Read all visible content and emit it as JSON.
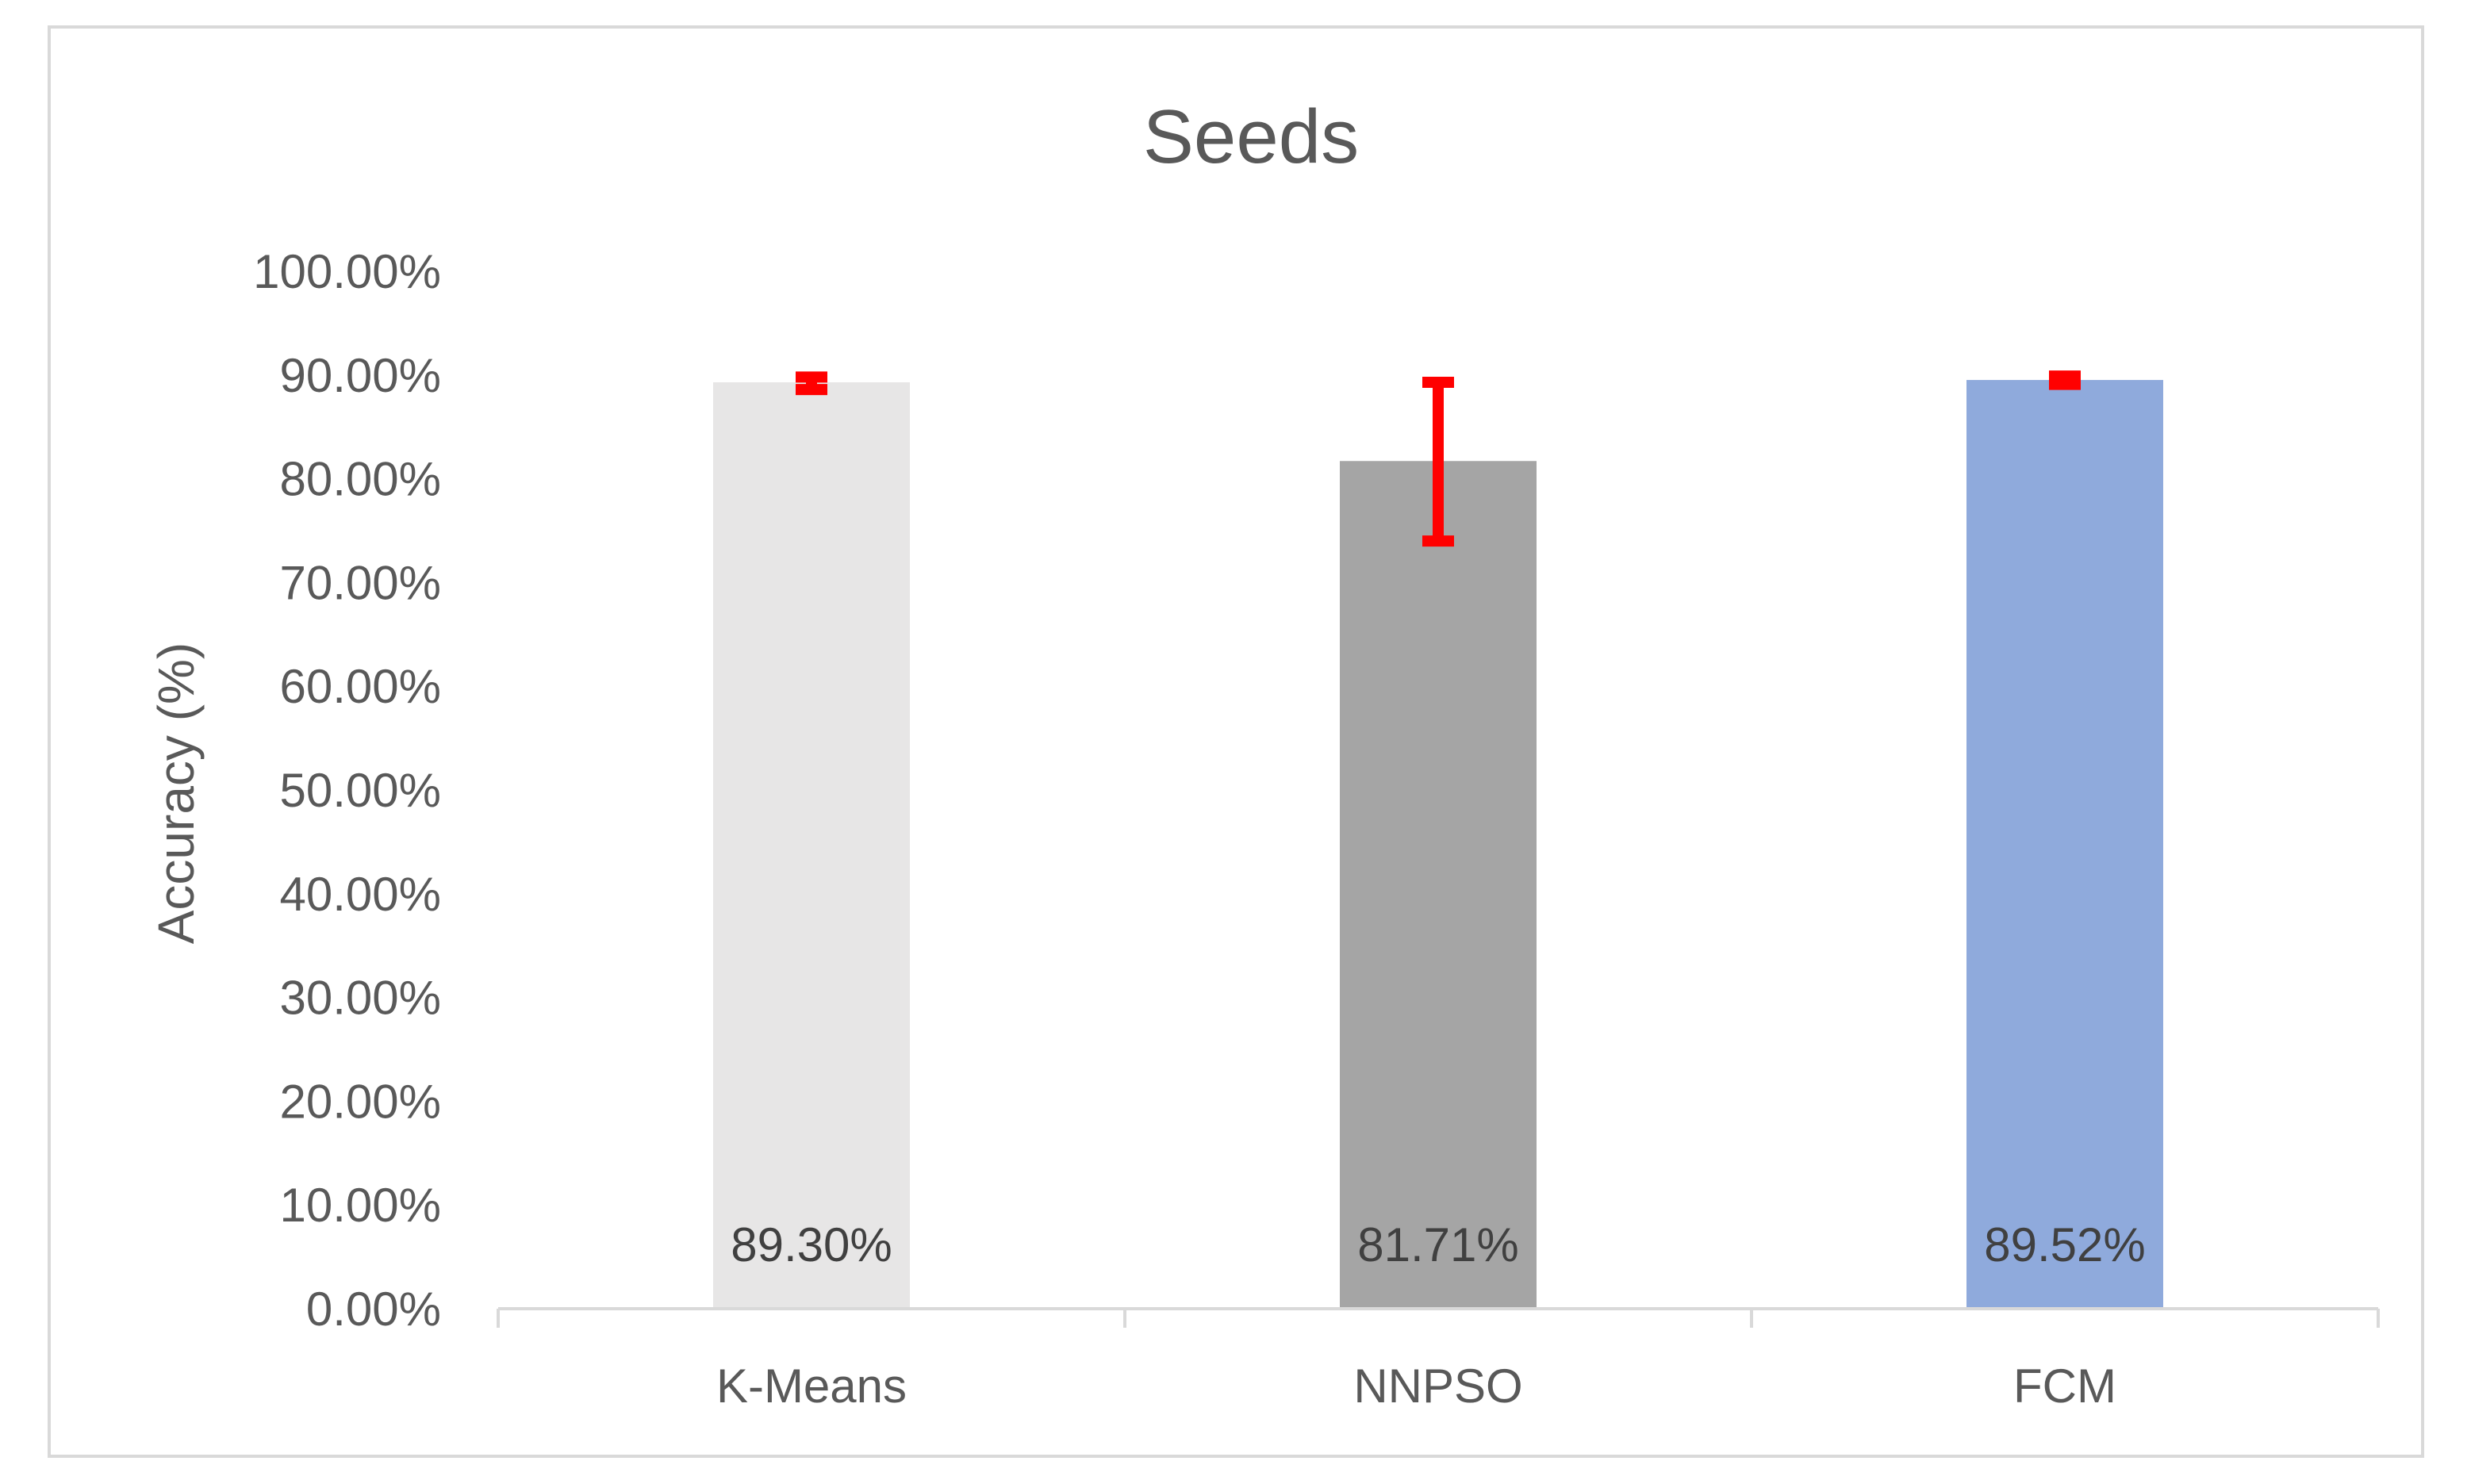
{
  "chart_data": {
    "type": "bar",
    "title": "Seeds",
    "ylabel": "Accuracy (%)",
    "xlabel": "",
    "categories": [
      "K-Means",
      "NNPSO",
      "FCM"
    ],
    "values": [
      89.3,
      81.71,
      89.52
    ],
    "data_labels": [
      "89.30%",
      "81.71%",
      "89.52%"
    ],
    "error_bars": [
      {
        "low": 88.6,
        "high": 89.8
      },
      {
        "low": 74.0,
        "high": 89.3
      },
      {
        "low": 89.1,
        "high": 89.9
      }
    ],
    "colors": [
      "#e7e6e6",
      "#a5a5a5",
      "#8faadc"
    ],
    "error_color": "#ff0000",
    "ylim": [
      0,
      100
    ],
    "yticks": [
      0,
      10,
      20,
      30,
      40,
      50,
      60,
      70,
      80,
      90,
      100
    ],
    "ytick_labels": [
      "0.00%",
      "10.00%",
      "20.00%",
      "30.00%",
      "40.00%",
      "50.00%",
      "60.00%",
      "70.00%",
      "80.00%",
      "90.00%",
      "100.00%"
    ],
    "grid": false,
    "legend": "none"
  }
}
